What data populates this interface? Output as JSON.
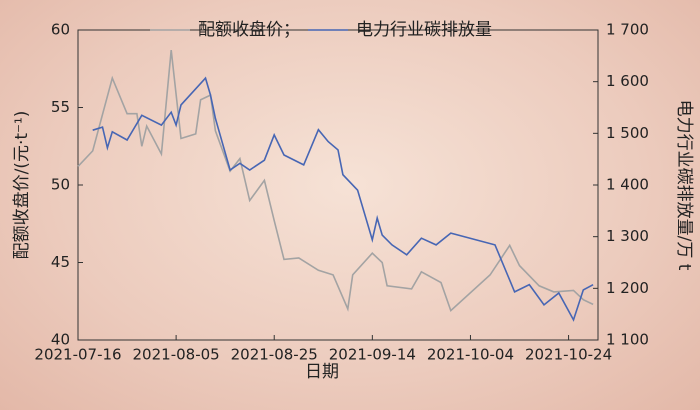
{
  "chart_data": {
    "type": "line",
    "x_label": "日期",
    "y_label": "配额收盘价/(元·t⁻¹)",
    "y2_label": "电力行业碳排放量/万 t",
    "xlim": [
      "2021-07-16",
      "2021-10-30"
    ],
    "xticks": [
      "2021-07-16",
      "2021-08-05",
      "2021-08-25",
      "2021-09-14",
      "2021-10-04",
      "2021-10-24"
    ],
    "ylim": [
      40,
      60
    ],
    "yticks": [
      40,
      45,
      50,
      55,
      60
    ],
    "y2lim": [
      1100,
      1700
    ],
    "y2ticks": [
      {
        "value": 1100,
        "label": "1 100"
      },
      {
        "value": 1200,
        "label": "1 200"
      },
      {
        "value": 1300,
        "label": "1 300"
      },
      {
        "value": 1400,
        "label": "1 400"
      },
      {
        "value": 1500,
        "label": "1 500"
      },
      {
        "value": 1600,
        "label": "1 600"
      },
      {
        "value": 1700,
        "label": "1 700"
      }
    ],
    "series": [
      {
        "name": "配额收盘价；",
        "color": "#a3a3a3",
        "axis": "y",
        "x": [
          "2021-07-16",
          "2021-07-19",
          "2021-07-23",
          "2021-07-26",
          "2021-07-28",
          "2021-07-29",
          "2021-07-30",
          "2021-08-02",
          "2021-08-04",
          "2021-08-06",
          "2021-08-09",
          "2021-08-10",
          "2021-08-12",
          "2021-08-13",
          "2021-08-16",
          "2021-08-18",
          "2021-08-20",
          "2021-08-23",
          "2021-08-25",
          "2021-08-27",
          "2021-08-30",
          "2021-09-03",
          "2021-09-06",
          "2021-09-09",
          "2021-09-10",
          "2021-09-14",
          "2021-09-16",
          "2021-09-17",
          "2021-09-22",
          "2021-09-24",
          "2021-09-28",
          "2021-09-30",
          "2021-10-08",
          "2021-10-12",
          "2021-10-14",
          "2021-10-18",
          "2021-10-21",
          "2021-10-25",
          "2021-10-27",
          "2021-10-29"
        ],
        "values": [
          51.2,
          52.2,
          56.9,
          54.6,
          54.6,
          52.5,
          53.8,
          52,
          58.7,
          53,
          53.3,
          55.5,
          55.8,
          53.5,
          50.9,
          51.7,
          49,
          50.3,
          47.7,
          45.2,
          45.3,
          44.5,
          44.2,
          42,
          44.2,
          45.6,
          45,
          43.5,
          43.3,
          44.4,
          43.7,
          41.9,
          44.2,
          46.1,
          44.8,
          43.5,
          43.1,
          43.2,
          42.6,
          42.3
        ]
      },
      {
        "name": "电力行业碳排放量",
        "color": "#4766b4",
        "axis": "y2",
        "x": [
          "2021-07-19",
          "2021-07-21",
          "2021-07-22",
          "2021-07-23",
          "2021-07-26",
          "2021-07-29",
          "2021-08-02",
          "2021-08-04",
          "2021-08-05",
          "2021-08-06",
          "2021-08-11",
          "2021-08-12",
          "2021-08-13",
          "2021-08-16",
          "2021-08-18",
          "2021-08-20",
          "2021-08-23",
          "2021-08-25",
          "2021-08-27",
          "2021-08-31",
          "2021-09-03",
          "2021-09-05",
          "2021-09-07",
          "2021-09-08",
          "2021-09-11",
          "2021-09-14",
          "2021-09-15",
          "2021-09-16",
          "2021-09-18",
          "2021-09-21",
          "2021-09-24",
          "2021-09-27",
          "2021-09-30",
          "2021-10-09",
          "2021-10-12",
          "2021-10-13",
          "2021-10-16",
          "2021-10-19",
          "2021-10-22",
          "2021-10-25",
          "2021-10-27",
          "2021-10-29"
        ],
        "values": [
          1506,
          1512,
          1472,
          1503,
          1487,
          1535,
          1516,
          1541,
          1516,
          1555,
          1607,
          1574,
          1529,
          1429,
          1442,
          1429,
          1448,
          1497,
          1458,
          1439,
          1507,
          1484,
          1468,
          1420,
          1390,
          1294,
          1336,
          1303,
          1284,
          1265,
          1297,
          1284,
          1307,
          1284,
          1216,
          1193,
          1207,
          1168,
          1191,
          1139,
          1197,
          1207
        ]
      }
    ]
  }
}
